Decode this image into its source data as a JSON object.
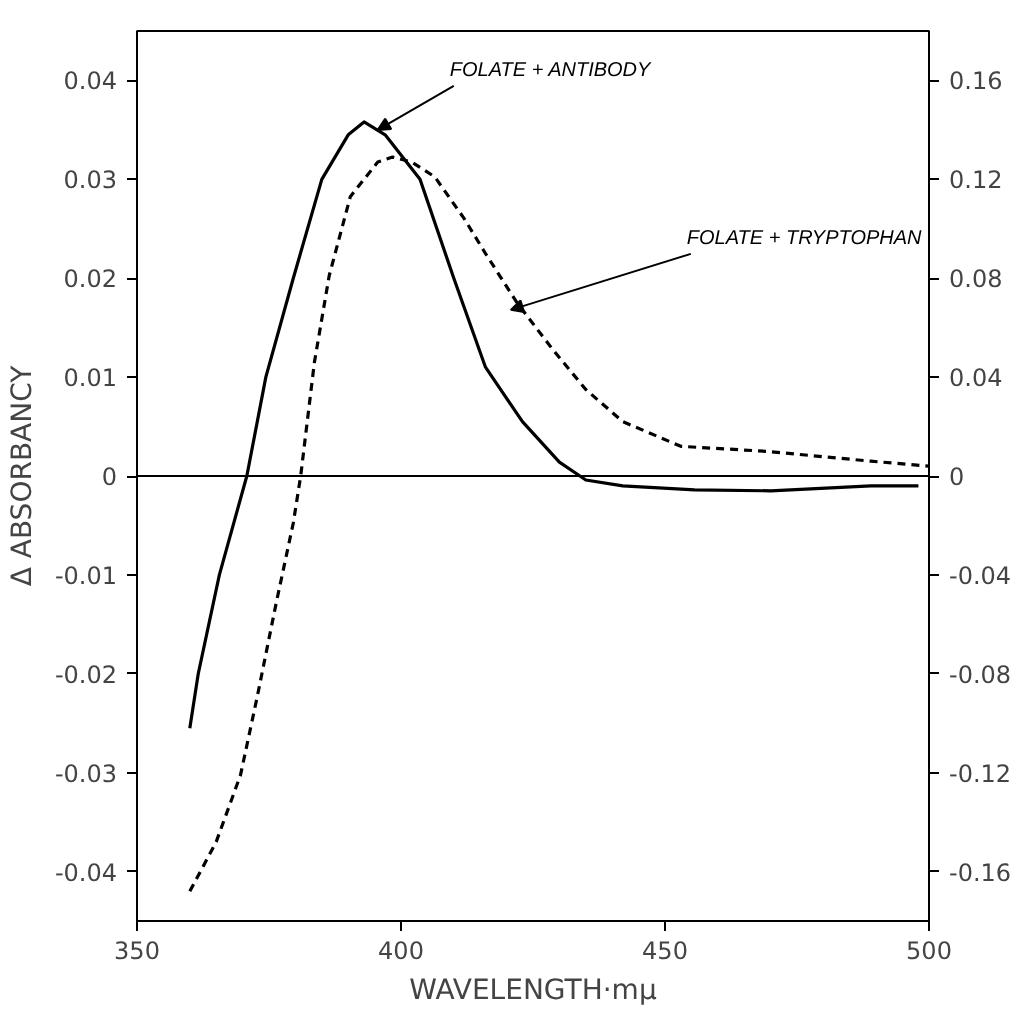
{
  "chart_data": {
    "type": "line",
    "xlabel": "WAVELENGTH·mμ",
    "ylabel": "Δ ABSORBANCY",
    "xlim": [
      350,
      500
    ],
    "xticks": [
      350,
      400,
      450,
      500
    ],
    "ylim": [
      -0.045,
      0.045
    ],
    "yticks": [
      -0.04,
      -0.03,
      -0.02,
      -0.01,
      0,
      0.01,
      0.02,
      0.03,
      0.04
    ],
    "y2lim": [
      -0.18,
      0.18
    ],
    "y2ticks": [
      -0.16,
      -0.12,
      -0.08,
      -0.04,
      0,
      0.04,
      0.08,
      0.12,
      0.16
    ],
    "grid": false,
    "ref_lines": [
      {
        "axis": "y",
        "value": 0,
        "color": "#000000",
        "line_style": "solid"
      }
    ],
    "annotations": [
      {
        "text": "FOLATE + ANTIBODY",
        "x": 395.6,
        "y": 0.035
      },
      {
        "text": "FOLATE + TRYPTOPHAN",
        "x": 420.8,
        "y": 0.0168
      }
    ],
    "series": [
      {
        "color": "#000000",
        "line_style": "solid",
        "axis": "y",
        "x": [
          360,
          361.6,
          365.6,
          370.8,
          374.4,
          379.6,
          385,
          390,
          393,
          397,
          403.6,
          410,
          416,
          423,
          430,
          435,
          442,
          455.6,
          470,
          489,
          498
        ],
        "values": [
          -0.0255,
          -0.02,
          -0.01,
          0,
          0.01,
          0.02,
          0.03,
          0.0345,
          0.0358,
          0.0345,
          0.03,
          0.02,
          0.011,
          0.0055,
          0.0014,
          -0.0004,
          -0.001,
          -0.0014,
          -0.0015,
          -0.001,
          -0.001
        ]
      },
      {
        "color": "#000000",
        "line_style": "dashed",
        "axis": "y2",
        "x": [
          360,
          362,
          365,
          369.6,
          372.8,
          376.4,
          379.6,
          381,
          383.6,
          386.4,
          390.4,
          395.6,
          398.4,
          402,
          406.4,
          412,
          416,
          422,
          428.8,
          435,
          442,
          453,
          469,
          489,
          500
        ],
        "values": [
          -0.168,
          -0.16,
          -0.148,
          -0.121,
          -0.089,
          -0.051,
          -0.019,
          0,
          0.046,
          0.081,
          0.113,
          0.127,
          0.129,
          0.127,
          0.121,
          0.104,
          0.09,
          0.07,
          0.051,
          0.035,
          0.022,
          0.012,
          0.01,
          0.006,
          0.004
        ]
      }
    ]
  }
}
